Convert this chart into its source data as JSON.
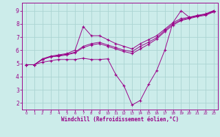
{
  "background_color": "#ccecea",
  "grid_color": "#aad4d2",
  "line_color": "#990088",
  "xlabel": "Windchill (Refroidissement éolien,°C)",
  "xlim": [
    -0.5,
    23.5
  ],
  "ylim": [
    1.5,
    9.6
  ],
  "yticks": [
    2,
    3,
    4,
    5,
    6,
    7,
    8,
    9
  ],
  "xticks": [
    0,
    1,
    2,
    3,
    4,
    5,
    6,
    7,
    8,
    9,
    10,
    11,
    12,
    13,
    14,
    15,
    16,
    17,
    18,
    19,
    20,
    21,
    22,
    23
  ],
  "line_flat_x": [
    0,
    1,
    2,
    3,
    4,
    5,
    6,
    7,
    8,
    9,
    10,
    11,
    12,
    13,
    14,
    15,
    16,
    17,
    18,
    19,
    20,
    21,
    22,
    23
  ],
  "line_flat_y": [
    4.9,
    4.9,
    5.1,
    5.2,
    5.3,
    5.3,
    5.3,
    5.4,
    5.3,
    5.3,
    5.35,
    4.15,
    3.3,
    1.85,
    2.2,
    3.4,
    4.45,
    6.0,
    8.1,
    9.0,
    8.5,
    8.6,
    8.75,
    9.0
  ],
  "line_diag1_x": [
    0,
    1,
    2,
    3,
    4,
    5,
    6,
    7,
    8,
    9,
    10,
    11,
    12,
    13,
    14,
    15,
    16,
    17,
    18,
    19,
    20,
    21,
    22,
    23
  ],
  "line_diag1_y": [
    4.9,
    4.9,
    5.35,
    5.55,
    5.65,
    5.75,
    6.0,
    7.8,
    7.1,
    7.1,
    6.8,
    6.5,
    6.3,
    6.1,
    6.5,
    6.8,
    7.1,
    7.6,
    8.1,
    8.4,
    8.5,
    8.65,
    8.75,
    9.0
  ],
  "line_diag2_x": [
    0,
    1,
    2,
    3,
    4,
    5,
    6,
    7,
    8,
    9,
    10,
    11,
    12,
    13,
    14,
    15,
    16,
    17,
    18,
    19,
    20,
    21,
    22,
    23
  ],
  "line_diag2_y": [
    4.9,
    4.9,
    5.3,
    5.5,
    5.6,
    5.7,
    5.85,
    6.3,
    6.5,
    6.6,
    6.4,
    6.2,
    6.0,
    5.9,
    6.3,
    6.6,
    6.95,
    7.5,
    8.0,
    8.3,
    8.45,
    8.6,
    8.7,
    8.95
  ],
  "line_diag3_x": [
    0,
    1,
    2,
    3,
    4,
    5,
    6,
    7,
    8,
    9,
    10,
    11,
    12,
    13,
    14,
    15,
    16,
    17,
    18,
    19,
    20,
    21,
    22,
    23
  ],
  "line_diag3_y": [
    4.9,
    4.9,
    5.3,
    5.5,
    5.55,
    5.65,
    5.8,
    6.2,
    6.4,
    6.5,
    6.3,
    6.1,
    5.9,
    5.75,
    6.1,
    6.45,
    6.85,
    7.4,
    7.9,
    8.25,
    8.4,
    8.55,
    8.65,
    8.9
  ],
  "figsize": [
    3.2,
    2.0
  ],
  "dpi": 100
}
